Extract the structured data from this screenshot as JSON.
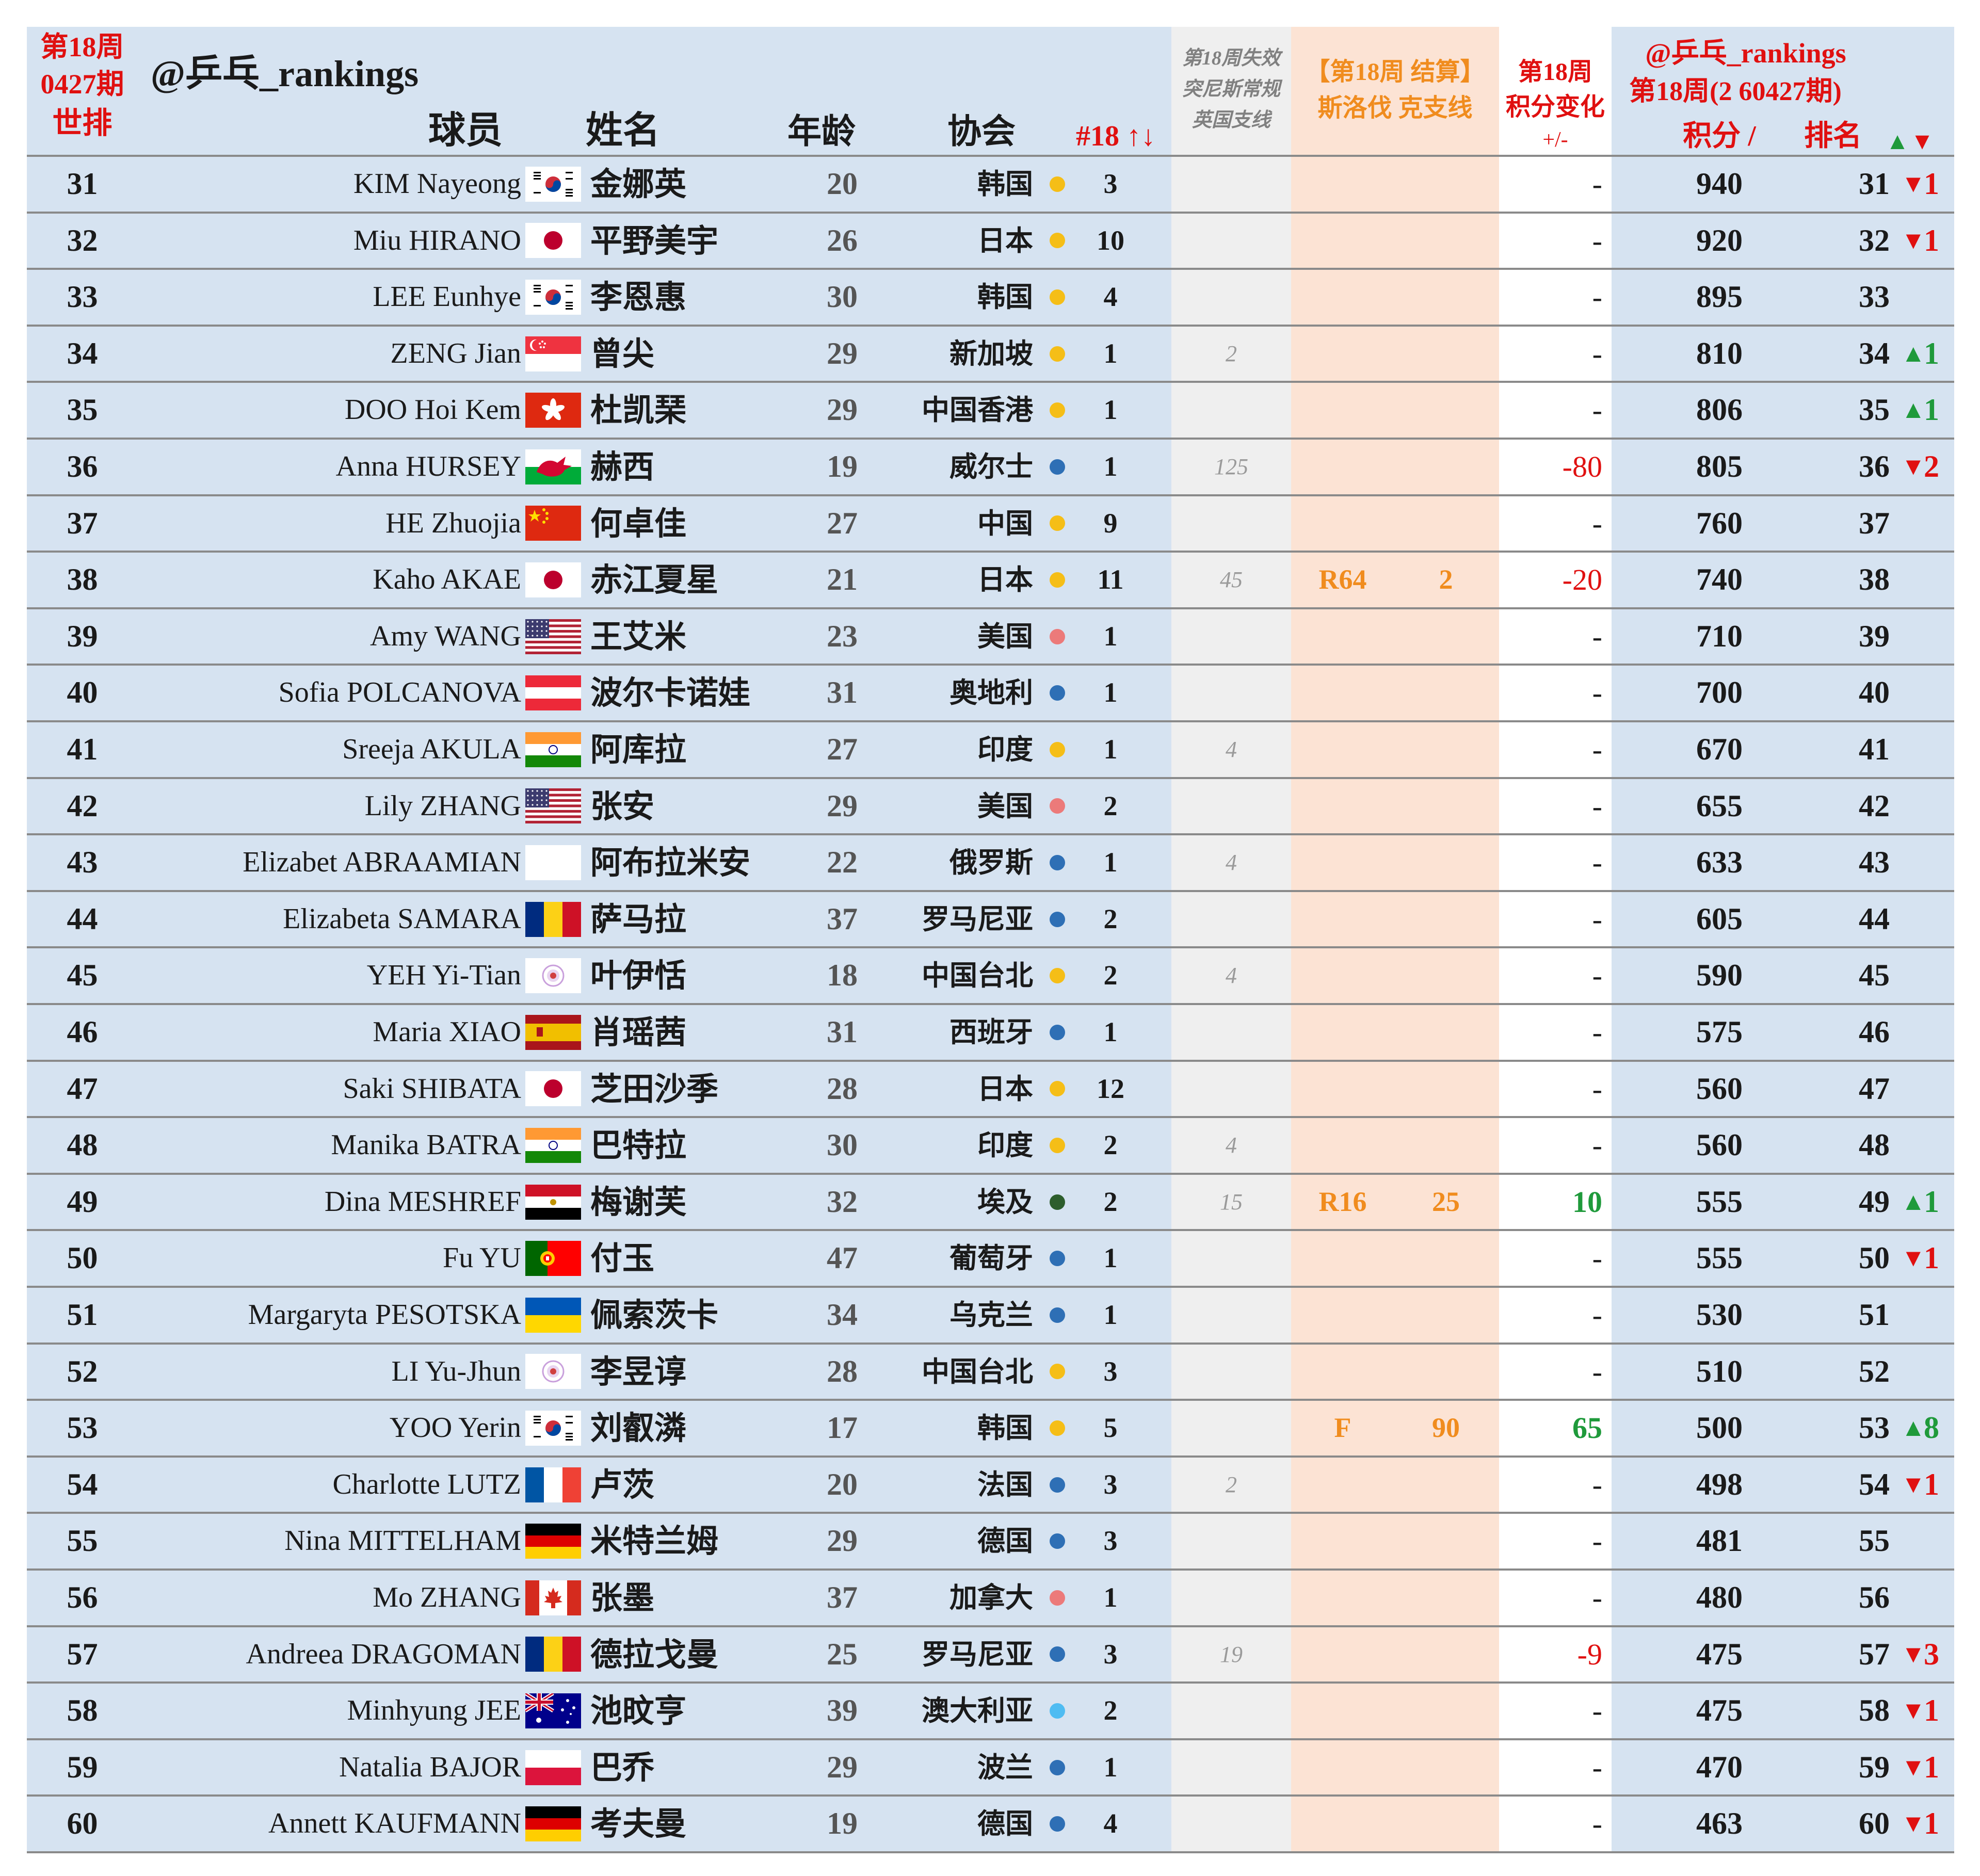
{
  "header": {
    "week_label": "第18周",
    "period_label": "0427期",
    "world_rank_label": "世排",
    "account": "@乒乓_rankings",
    "player_label": "球员",
    "name_label": "姓名",
    "age_label": "年龄",
    "assoc_label": "协会",
    "count_label": "#18 ↑↓",
    "expire_line1": "第18周失效",
    "expire_line2": "突尼斯常规",
    "expire_line3": "英国支线",
    "settle_line1": "【第18周 结算】",
    "settle_line2": "斯洛伐 克支线",
    "change_line1": "第18周",
    "change_line2": "积分变化",
    "change_line3": "+/-",
    "right_account": "@乒乓_rankings",
    "right_period": "第18周(2 60427期)",
    "points_label": "积分 /",
    "rank_label": "排名",
    "arrows_label_up": "▲",
    "arrows_label_down": "▼"
  },
  "colors": {
    "header_bg": "#d6e3f1",
    "expire_bg": "#efefef",
    "settle_bg": "#fce3d4",
    "red": "#e01010",
    "orange": "#f08c1e",
    "green": "#1f9a3b",
    "dot_gold": "#f5be17",
    "dot_blue": "#2e6fb5",
    "dot_pink": "#ec7a7a",
    "dot_green": "#2d5e2d",
    "dot_sky": "#4fbcf2"
  },
  "rows": [
    {
      "rank": "31",
      "en": "KIM Nayeong",
      "flag": "kor",
      "cn": "金娜英",
      "age": "20",
      "assoc": "韩国",
      "dot": "gold",
      "count": "3",
      "expire": "",
      "res": "",
      "resPts": "",
      "change": "-",
      "points": "940",
      "newRank": "31",
      "arrow": "down",
      "move": "1"
    },
    {
      "rank": "32",
      "en": "Miu HIRANO",
      "flag": "jpn",
      "cn": "平野美宇",
      "age": "26",
      "assoc": "日本",
      "dot": "gold",
      "count": "10",
      "expire": "",
      "res": "",
      "resPts": "",
      "change": "-",
      "points": "920",
      "newRank": "32",
      "arrow": "down",
      "move": "1"
    },
    {
      "rank": "33",
      "en": "LEE Eunhye",
      "flag": "kor",
      "cn": "李恩惠",
      "age": "30",
      "assoc": "韩国",
      "dot": "gold",
      "count": "4",
      "expire": "",
      "res": "",
      "resPts": "",
      "change": "-",
      "points": "895",
      "newRank": "33",
      "arrow": "",
      "move": ""
    },
    {
      "rank": "34",
      "en": "ZENG Jian",
      "flag": "sgp",
      "cn": "曾尖",
      "age": "29",
      "assoc": "新加坡",
      "dot": "gold",
      "count": "1",
      "expire": "2",
      "res": "",
      "resPts": "",
      "change": "-",
      "points": "810",
      "newRank": "34",
      "arrow": "up",
      "move": "1"
    },
    {
      "rank": "35",
      "en": "DOO Hoi Kem",
      "flag": "hkg",
      "cn": "杜凯琹",
      "age": "29",
      "assoc": "中国香港",
      "dot": "gold",
      "count": "1",
      "expire": "",
      "res": "",
      "resPts": "",
      "change": "-",
      "points": "806",
      "newRank": "35",
      "arrow": "up",
      "move": "1"
    },
    {
      "rank": "36",
      "en": "Anna HURSEY",
      "flag": "wal",
      "cn": "赫西",
      "age": "19",
      "assoc": "威尔士",
      "dot": "blue",
      "count": "1",
      "expire": "125",
      "res": "",
      "resPts": "",
      "change": "-80",
      "points": "805",
      "newRank": "36",
      "arrow": "down",
      "move": "2"
    },
    {
      "rank": "37",
      "en": "HE Zhuojia",
      "flag": "chn",
      "cn": "何卓佳",
      "age": "27",
      "assoc": "中国",
      "dot": "gold",
      "count": "9",
      "expire": "",
      "res": "",
      "resPts": "",
      "change": "-",
      "points": "760",
      "newRank": "37",
      "arrow": "",
      "move": ""
    },
    {
      "rank": "38",
      "en": "Kaho AKAE",
      "flag": "jpn",
      "cn": "赤江夏星",
      "age": "21",
      "assoc": "日本",
      "dot": "gold",
      "count": "11",
      "expire": "45",
      "res": "R64",
      "resPts": "2",
      "change": "-20",
      "points": "740",
      "newRank": "38",
      "arrow": "",
      "move": ""
    },
    {
      "rank": "39",
      "en": "Amy WANG",
      "flag": "usa",
      "cn": "王艾米",
      "age": "23",
      "assoc": "美国",
      "dot": "pink",
      "count": "1",
      "expire": "",
      "res": "",
      "resPts": "",
      "change": "-",
      "points": "710",
      "newRank": "39",
      "arrow": "",
      "move": ""
    },
    {
      "rank": "40",
      "en": "Sofia POLCANOVA",
      "flag": "aut",
      "cn": "波尔卡诺娃",
      "age": "31",
      "assoc": "奥地利",
      "dot": "blue",
      "count": "1",
      "expire": "",
      "res": "",
      "resPts": "",
      "change": "-",
      "points": "700",
      "newRank": "40",
      "arrow": "",
      "move": ""
    },
    {
      "rank": "41",
      "en": "Sreeja AKULA",
      "flag": "ind",
      "cn": "阿库拉",
      "age": "27",
      "assoc": "印度",
      "dot": "gold",
      "count": "1",
      "expire": "4",
      "res": "",
      "resPts": "",
      "change": "-",
      "points": "670",
      "newRank": "41",
      "arrow": "",
      "move": ""
    },
    {
      "rank": "42",
      "en": "Lily ZHANG",
      "flag": "usa",
      "cn": "张安",
      "age": "29",
      "assoc": "美国",
      "dot": "pink",
      "count": "2",
      "expire": "",
      "res": "",
      "resPts": "",
      "change": "-",
      "points": "655",
      "newRank": "42",
      "arrow": "",
      "move": ""
    },
    {
      "rank": "43",
      "en": "Elizabet ABRAAMIAN",
      "flag": "none",
      "cn": "阿布拉米安",
      "age": "22",
      "assoc": "俄罗斯",
      "dot": "blue",
      "count": "1",
      "expire": "4",
      "res": "",
      "resPts": "",
      "change": "-",
      "points": "633",
      "newRank": "43",
      "arrow": "",
      "move": ""
    },
    {
      "rank": "44",
      "en": "Elizabeta SAMARA",
      "flag": "rou",
      "cn": "萨马拉",
      "age": "37",
      "assoc": "罗马尼亚",
      "dot": "blue",
      "count": "2",
      "expire": "",
      "res": "",
      "resPts": "",
      "change": "-",
      "points": "605",
      "newRank": "44",
      "arrow": "",
      "move": ""
    },
    {
      "rank": "45",
      "en": "YEH Yi-Tian",
      "flag": "tpe",
      "cn": "叶伊恬",
      "age": "18",
      "assoc": "中国台北",
      "dot": "gold",
      "count": "2",
      "expire": "4",
      "res": "",
      "resPts": "",
      "change": "-",
      "points": "590",
      "newRank": "45",
      "arrow": "",
      "move": ""
    },
    {
      "rank": "46",
      "en": "Maria XIAO",
      "flag": "esp",
      "cn": "肖瑶茜",
      "age": "31",
      "assoc": "西班牙",
      "dot": "blue",
      "count": "1",
      "expire": "",
      "res": "",
      "resPts": "",
      "change": "-",
      "points": "575",
      "newRank": "46",
      "arrow": "",
      "move": ""
    },
    {
      "rank": "47",
      "en": "Saki SHIBATA",
      "flag": "jpn",
      "cn": "芝田沙季",
      "age": "28",
      "assoc": "日本",
      "dot": "gold",
      "count": "12",
      "expire": "",
      "res": "",
      "resPts": "",
      "change": "-",
      "points": "560",
      "newRank": "47",
      "arrow": "",
      "move": ""
    },
    {
      "rank": "48",
      "en": "Manika BATRA",
      "flag": "ind",
      "cn": "巴特拉",
      "age": "30",
      "assoc": "印度",
      "dot": "gold",
      "count": "2",
      "expire": "4",
      "res": "",
      "resPts": "",
      "change": "-",
      "points": "560",
      "newRank": "48",
      "arrow": "",
      "move": ""
    },
    {
      "rank": "49",
      "en": "Dina MESHREF",
      "flag": "egy",
      "cn": "梅谢芙",
      "age": "32",
      "assoc": "埃及",
      "dot": "green",
      "count": "2",
      "expire": "15",
      "res": "R16",
      "resPts": "25",
      "change": "10",
      "points": "555",
      "newRank": "49",
      "arrow": "up",
      "move": "1"
    },
    {
      "rank": "50",
      "en": "Fu YU",
      "flag": "por",
      "cn": "付玉",
      "age": "47",
      "assoc": "葡萄牙",
      "dot": "blue",
      "count": "1",
      "expire": "",
      "res": "",
      "resPts": "",
      "change": "-",
      "points": "555",
      "newRank": "50",
      "arrow": "down",
      "move": "1"
    },
    {
      "rank": "51",
      "en": "Margaryta PESOTSKA",
      "flag": "ukr",
      "cn": "佩索茨卡",
      "age": "34",
      "assoc": "乌克兰",
      "dot": "blue",
      "count": "1",
      "expire": "",
      "res": "",
      "resPts": "",
      "change": "-",
      "points": "530",
      "newRank": "51",
      "arrow": "",
      "move": ""
    },
    {
      "rank": "52",
      "en": "LI Yu-Jhun",
      "flag": "tpe",
      "cn": "李昱谆",
      "age": "28",
      "assoc": "中国台北",
      "dot": "gold",
      "count": "3",
      "expire": "",
      "res": "",
      "resPts": "",
      "change": "-",
      "points": "510",
      "newRank": "52",
      "arrow": "",
      "move": ""
    },
    {
      "rank": "53",
      "en": "YOO Yerin",
      "flag": "kor",
      "cn": "刘叡潾",
      "age": "17",
      "assoc": "韩国",
      "dot": "gold",
      "count": "5",
      "expire": "",
      "res": "F",
      "resPts": "90",
      "change": "65",
      "points": "500",
      "newRank": "53",
      "arrow": "up",
      "move": "8"
    },
    {
      "rank": "54",
      "en": "Charlotte LUTZ",
      "flag": "fra",
      "cn": "卢茨",
      "age": "20",
      "assoc": "法国",
      "dot": "blue",
      "count": "3",
      "expire": "2",
      "res": "",
      "resPts": "",
      "change": "-",
      "points": "498",
      "newRank": "54",
      "arrow": "down",
      "move": "1"
    },
    {
      "rank": "55",
      "en": "Nina MITTELHAM",
      "flag": "ger",
      "cn": "米特兰姆",
      "age": "29",
      "assoc": "德国",
      "dot": "blue",
      "count": "3",
      "expire": "",
      "res": "",
      "resPts": "",
      "change": "-",
      "points": "481",
      "newRank": "55",
      "arrow": "",
      "move": ""
    },
    {
      "rank": "56",
      "en": "Mo ZHANG",
      "flag": "can",
      "cn": "张墨",
      "age": "37",
      "assoc": "加拿大",
      "dot": "pink",
      "count": "1",
      "expire": "",
      "res": "",
      "resPts": "",
      "change": "-",
      "points": "480",
      "newRank": "56",
      "arrow": "",
      "move": ""
    },
    {
      "rank": "57",
      "en": "Andreea DRAGOMAN",
      "flag": "rou",
      "cn": "德拉戈曼",
      "age": "25",
      "assoc": "罗马尼亚",
      "dot": "blue",
      "count": "3",
      "expire": "19",
      "res": "",
      "resPts": "",
      "change": "-9",
      "points": "475",
      "newRank": "57",
      "arrow": "down",
      "move": "3"
    },
    {
      "rank": "58",
      "en": "Minhyung JEE",
      "flag": "aus",
      "cn": "池旼亨",
      "age": "39",
      "assoc": "澳大利亚",
      "dot": "sky",
      "count": "2",
      "expire": "",
      "res": "",
      "resPts": "",
      "change": "-",
      "points": "475",
      "newRank": "58",
      "arrow": "down",
      "move": "1"
    },
    {
      "rank": "59",
      "en": "Natalia BAJOR",
      "flag": "pol",
      "cn": "巴乔",
      "age": "29",
      "assoc": "波兰",
      "dot": "blue",
      "count": "1",
      "expire": "",
      "res": "",
      "resPts": "",
      "change": "-",
      "points": "470",
      "newRank": "59",
      "arrow": "down",
      "move": "1"
    },
    {
      "rank": "60",
      "en": "Annett KAUFMANN",
      "flag": "ger",
      "cn": "考夫曼",
      "age": "19",
      "assoc": "德国",
      "dot": "blue",
      "count": "4",
      "expire": "",
      "res": "",
      "resPts": "",
      "change": "-",
      "points": "463",
      "newRank": "60",
      "arrow": "down",
      "move": "1"
    }
  ]
}
